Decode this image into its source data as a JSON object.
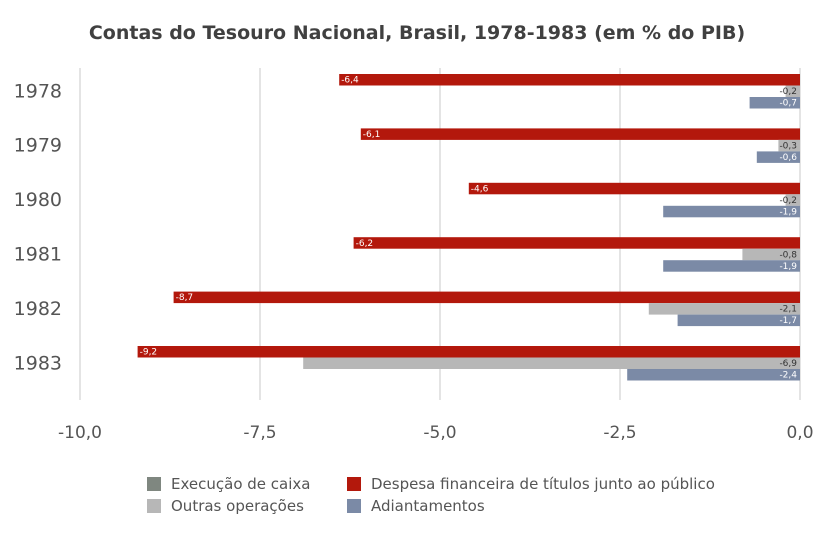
{
  "chart_data": {
    "type": "bar",
    "orientation": "horizontal",
    "title": "Contas do Tesouro Nacional, Brasil, 1978-1983 (em % do PIB)",
    "xlabel": "",
    "ylabel": "",
    "xlim": [
      -10.0,
      0.0
    ],
    "x_ticks": [
      -10.0,
      -7.5,
      -5.0,
      -2.5,
      0.0
    ],
    "x_tick_labels": [
      "-10,0",
      "-7,5",
      "-5,0",
      "-2,5",
      "0,0"
    ],
    "grid": "vertical",
    "legend_position": "bottom",
    "categories": [
      "1978",
      "1979",
      "1980",
      "1981",
      "1982",
      "1983"
    ],
    "series": [
      {
        "name": "Despesa financeira de títulos junto ao público",
        "color": "#b3180c",
        "values": [
          -6.4,
          -6.1,
          -4.6,
          -6.2,
          -8.7,
          -9.2
        ],
        "labels": [
          "-6,4",
          "-6,1",
          "-4,6",
          "-6,2",
          "-8,7",
          "-9,2"
        ]
      },
      {
        "name": "Outras operações",
        "color": "#b7b7b7",
        "values": [
          -0.2,
          -0.3,
          -0.2,
          -0.8,
          -2.1,
          -6.9
        ],
        "labels": [
          "-0,2",
          "-0,3",
          "-0,2",
          "-0,8",
          "-2,1",
          "-6,9"
        ]
      },
      {
        "name": "Adiantamentos",
        "color": "#7b8aa6",
        "values": [
          -0.7,
          -0.6,
          -1.9,
          -1.9,
          -1.7,
          -2.4
        ],
        "labels": [
          "-0,7",
          "-0,6",
          "-1,9",
          "-1,9",
          "-1,7",
          "-2,4"
        ]
      }
    ],
    "legend": [
      {
        "name": "Execução de caixa",
        "color": "#7f8780"
      },
      {
        "name": "Despesa financeira de títulos junto ao público",
        "color": "#b3180c"
      },
      {
        "name": "Outras operações",
        "color": "#b7b7b7"
      },
      {
        "name": "Adiantamentos",
        "color": "#7b8aa6"
      }
    ]
  }
}
